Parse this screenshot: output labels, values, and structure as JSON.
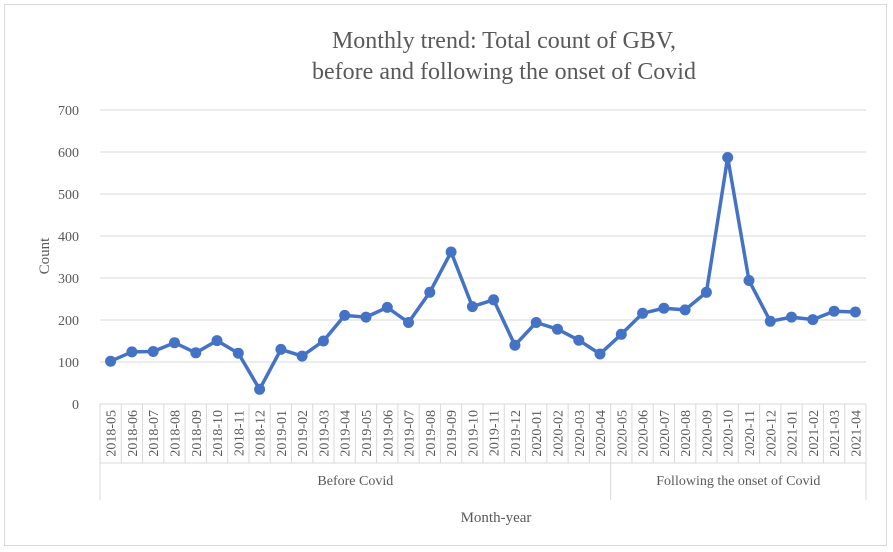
{
  "chart_data": {
    "type": "line",
    "title_line1": "Monthly trend: Total count of GBV,",
    "title_line2": "before and following the onset of Covid",
    "xlabel": "Month-year",
    "ylabel": "Count",
    "ylim": [
      0,
      700
    ],
    "yticks": [
      "0",
      "100",
      "200",
      "300",
      "400",
      "500",
      "600",
      "700"
    ],
    "grid": true,
    "legend": "none",
    "color": "#4472c4",
    "categories": [
      "2018-05",
      "2018-06",
      "2018-07",
      "2018-08",
      "2018-09",
      "2018-10",
      "2018-11",
      "2018-12",
      "2019-01",
      "2019-02",
      "2019-03",
      "2019-04",
      "2019-05",
      "2019-06",
      "2019-07",
      "2019-08",
      "2019-09",
      "2019-10",
      "2019-11",
      "2019-12",
      "2020-01",
      "2020-02",
      "2020-03",
      "2020-04",
      "2020-05",
      "2020-06",
      "2020-07",
      "2020-08",
      "2020-09",
      "2020-10",
      "2020-11",
      "2020-12",
      "2021-01",
      "2021-02",
      "2021-03",
      "2021-04"
    ],
    "values": [
      102,
      124,
      125,
      146,
      122,
      151,
      121,
      35,
      130,
      114,
      150,
      211,
      207,
      230,
      194,
      266,
      362,
      232,
      248,
      140,
      194,
      178,
      152,
      119,
      166,
      216,
      228,
      224,
      266,
      587,
      294,
      197,
      207,
      201,
      221,
      219
    ],
    "groups": [
      {
        "label": "Before Covid",
        "count": 24
      },
      {
        "label": "Following the onset of Covid",
        "count": 12
      }
    ]
  }
}
